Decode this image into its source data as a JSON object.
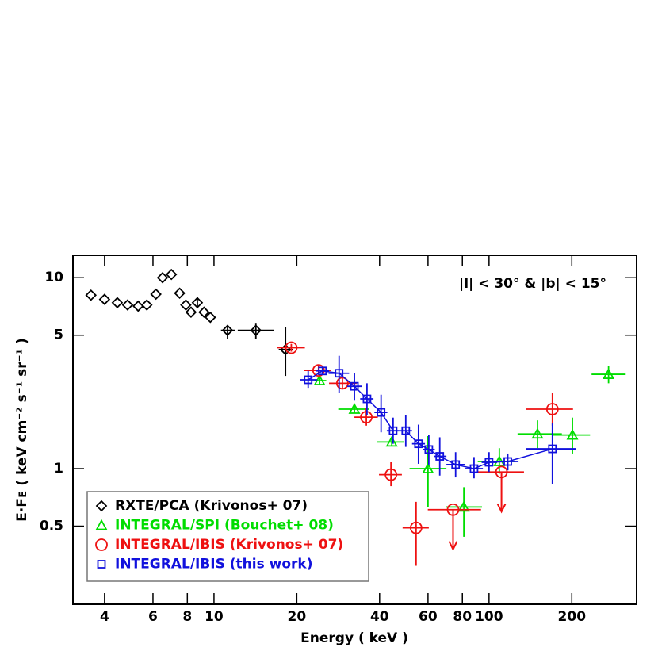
{
  "chart_data": {
    "type": "scatter",
    "xlabel": "Energy ( keV )",
    "ylabel": "E·Fᴇ ( keV cm⁻² s⁻¹ sr⁻¹ )",
    "annotation": "|l| < 30° & |b| < 15°",
    "xscale": "log",
    "yscale": "log",
    "xlim": [
      3.07,
      344
    ],
    "ylim": [
      0.195,
      13.1
    ],
    "xticks": [
      4,
      6,
      8,
      10,
      20,
      40,
      60,
      80,
      100,
      200
    ],
    "yticks": [
      0.5,
      1,
      5,
      10
    ],
    "legend": "lower left",
    "series": [
      {
        "name": "RXTE/PCA (Krivonos+ 07)",
        "color": "#000000",
        "marker": "diamond",
        "x": [
          3.57,
          4.0,
          4.45,
          4.85,
          5.3,
          5.7,
          6.15,
          6.5,
          7.0,
          7.5,
          7.9,
          8.25,
          8.7,
          9.2,
          9.7,
          11.2,
          14.2,
          18.2
        ],
        "values": [
          8.1,
          7.7,
          7.4,
          7.2,
          7.1,
          7.2,
          8.2,
          10.0,
          10.4,
          8.3,
          7.2,
          6.6,
          7.4,
          6.6,
          6.2,
          5.3,
          5.3,
          4.2
        ],
        "xerr": [
          null,
          null,
          null,
          null,
          null,
          null,
          null,
          null,
          null,
          null,
          null,
          null,
          null,
          null,
          null,
          [
            10.6,
            11.9
          ],
          [
            12.2,
            16.5
          ],
          [
            17.2,
            19.3
          ]
        ],
        "yerr": [
          null,
          null,
          null,
          null,
          null,
          null,
          null,
          null,
          null,
          null,
          null,
          null,
          [
            7.9,
            6.9
          ],
          null,
          null,
          [
            5.6,
            4.8
          ],
          [
            5.8,
            4.8
          ],
          [
            5.5,
            3.06
          ]
        ]
      },
      {
        "name": "INTEGRAL/SPI (Bouchet+ 08)",
        "color": "#00dd00",
        "marker": "triangle",
        "x": [
          24.2,
          32.4,
          44.3,
          60,
          81,
          109,
          150,
          201,
          272
        ],
        "values": [
          2.89,
          2.05,
          1.38,
          1.0,
          0.63,
          1.09,
          1.52,
          1.5,
          3.12
        ],
        "xerr": [
          [
            23.2,
            25.6
          ],
          [
            28.3,
            36.7
          ],
          [
            39.2,
            49.2
          ],
          [
            51.4,
            70
          ],
          [
            69.9,
            94.3
          ],
          [
            91,
            124
          ],
          [
            127,
            184
          ],
          [
            170,
            233
          ],
          [
            236,
            314
          ]
        ],
        "yerr": [
          [
            3.05,
            2.75
          ],
          [
            2.15,
            1.95
          ],
          [
            1.45,
            1.32
          ],
          [
            1.48,
            0.63
          ],
          [
            0.8,
            0.44
          ],
          [
            1.28,
            0.94
          ],
          [
            1.79,
            1.28
          ],
          [
            1.85,
            1.2
          ],
          [
            3.45,
            2.8
          ]
        ]
      },
      {
        "name": "INTEGRAL/IBIS (Krivonos+ 07)",
        "color": "#ee1111",
        "marker": "circle",
        "x": [
          19.1,
          24,
          29.3,
          35.8,
          44,
          54.3,
          74,
          111,
          170
        ],
        "values": [
          4.3,
          3.27,
          2.8,
          1.86,
          0.93,
          0.49,
          0.61,
          0.96,
          2.05
        ],
        "upper_limit": [
          false,
          false,
          false,
          false,
          false,
          false,
          true,
          true,
          false
        ],
        "xerr": [
          [
            17,
            21.4
          ],
          [
            21.2,
            26.7
          ],
          [
            26.2,
            33
          ],
          [
            32.4,
            39.4
          ],
          [
            39.8,
            48.2
          ],
          [
            48.5,
            60.4
          ],
          [
            59.9,
            93.5
          ],
          [
            90.6,
            134
          ],
          [
            136,
            202
          ]
        ],
        "yerr": [
          [
            4.5,
            4.1
          ],
          [
            3.45,
            3.1
          ],
          [
            3.0,
            2.6
          ],
          [
            2.07,
            1.68
          ],
          [
            1.08,
            0.81
          ],
          [
            0.67,
            0.31
          ],
          null,
          null,
          [
            2.5,
            1.68
          ]
        ]
      },
      {
        "name": "INTEGRAL/IBIS (this work)",
        "color": "#1111dd",
        "marker": "square",
        "x": [
          22.0,
          24.8,
          28.5,
          32.4,
          36,
          40.5,
          44.8,
          49.8,
          55.4,
          60.4,
          66.2,
          75.6,
          88.2,
          100,
          117,
          170
        ],
        "values": [
          2.92,
          3.25,
          3.16,
          2.7,
          2.32,
          1.97,
          1.58,
          1.58,
          1.35,
          1.26,
          1.16,
          1.05,
          1.0,
          1.08,
          1.09,
          1.27
        ],
        "xerr": [
          [
            20.5,
            23.7
          ],
          [
            23.5,
            26.2
          ],
          [
            26.1,
            31
          ],
          [
            30.5,
            34.5
          ],
          [
            34,
            38
          ],
          [
            38.3,
            42.7
          ],
          [
            42.5,
            47.2
          ],
          [
            47.3,
            52.5
          ],
          [
            52.5,
            58.5
          ],
          [
            57.5,
            63.5
          ],
          [
            63,
            70
          ],
          [
            70,
            82
          ],
          [
            82,
            95
          ],
          [
            94,
            107
          ],
          [
            107,
            128
          ],
          [
            136,
            207
          ]
        ],
        "yerr": [
          [
            3.25,
            2.65
          ],
          [
            3.4,
            3.1
          ],
          [
            3.9,
            2.5
          ],
          [
            3.18,
            2.27
          ],
          [
            2.8,
            1.9
          ],
          [
            2.44,
            1.55
          ],
          [
            1.85,
            1.35
          ],
          [
            1.9,
            1.3
          ],
          [
            1.7,
            1.06
          ],
          [
            1.5,
            1.05
          ],
          [
            1.46,
            0.92
          ],
          [
            1.22,
            0.9
          ],
          [
            1.15,
            0.89
          ],
          [
            1.22,
            0.96
          ],
          [
            1.2,
            0.98
          ],
          [
            1.74,
            0.83
          ]
        ]
      }
    ]
  }
}
